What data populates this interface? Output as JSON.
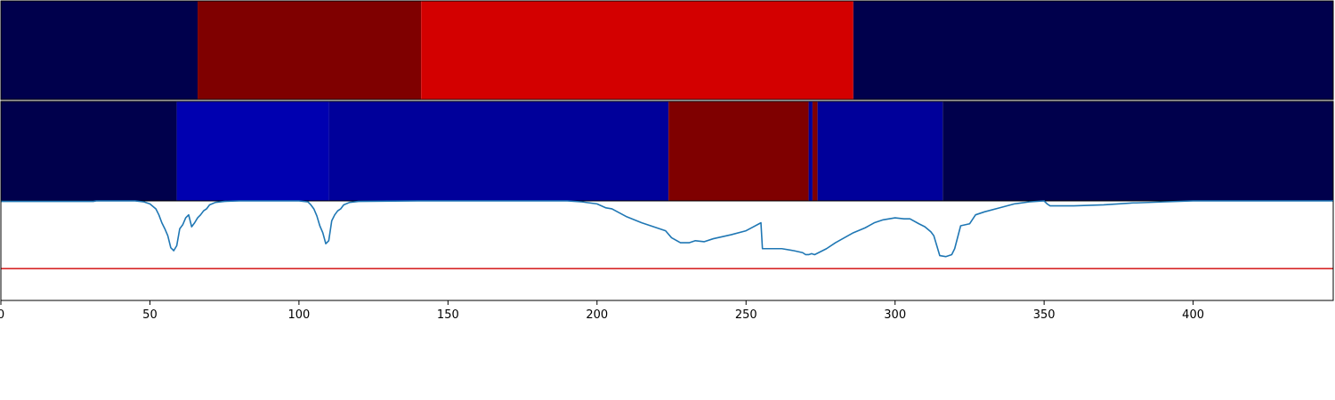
{
  "chart_data": {
    "type": "heatmap",
    "x_ticks": [
      0,
      50,
      100,
      150,
      200,
      250,
      300,
      350,
      400
    ],
    "xlim": [
      0,
      447
    ],
    "panels": [
      {
        "type": "heatmap",
        "segments": [
          {
            "start": 0,
            "end": 66,
            "color": "#00004c"
          },
          {
            "start": 66,
            "end": 141,
            "color": "#7f0000"
          },
          {
            "start": 141,
            "end": 286,
            "color": "#d30000"
          },
          {
            "start": 286,
            "end": 447,
            "color": "#00004c"
          }
        ]
      },
      {
        "type": "heatmap",
        "segments": [
          {
            "start": 0,
            "end": 59,
            "color": "#00004c"
          },
          {
            "start": 59,
            "end": 110,
            "color": "#0000b0"
          },
          {
            "start": 110,
            "end": 224,
            "color": "#00009a"
          },
          {
            "start": 224,
            "end": 271,
            "color": "#7f0000"
          },
          {
            "start": 271,
            "end": 272.3,
            "color": "#00009a"
          },
          {
            "start": 272.3,
            "end": 274,
            "color": "#7f0000"
          },
          {
            "start": 274,
            "end": 316,
            "color": "#00009a"
          },
          {
            "start": 316,
            "end": 447,
            "color": "#00004c"
          }
        ]
      },
      {
        "type": "line",
        "ylim": [
          0,
          1
        ],
        "threshold": 0.32,
        "threshold_color": "#d62728",
        "line_color": "#1f77b4",
        "x": [
          0,
          31,
          32,
          45,
          48,
          50,
          52,
          53,
          54,
          55,
          56,
          57,
          58,
          59,
          60,
          61,
          62,
          63,
          64,
          65,
          66,
          67,
          68,
          69,
          70,
          72,
          75,
          80,
          100,
          103,
          104,
          105,
          106,
          107,
          108,
          109,
          110,
          111,
          112,
          113,
          114,
          115,
          117,
          120,
          140,
          190,
          195,
          200,
          203,
          205,
          210,
          215,
          220,
          223,
          225,
          228,
          231,
          233,
          236,
          239,
          242,
          245,
          250,
          255,
          255.5,
          262,
          266,
          269,
          270,
          271,
          272,
          273,
          275,
          277,
          280,
          283,
          286,
          290,
          293,
          296,
          300,
          303,
          305,
          308,
          310,
          312,
          313,
          314,
          315,
          317,
          319,
          320,
          322,
          325,
          327,
          330,
          335,
          340,
          345,
          350,
          351,
          352,
          360,
          370,
          380,
          381,
          390,
          400,
          420,
          447
        ],
        "y": [
          0.995,
          0.995,
          1.0,
          1.0,
          0.99,
          0.97,
          0.92,
          0.86,
          0.78,
          0.72,
          0.65,
          0.53,
          0.5,
          0.55,
          0.72,
          0.76,
          0.83,
          0.86,
          0.74,
          0.78,
          0.83,
          0.86,
          0.9,
          0.92,
          0.96,
          0.985,
          0.995,
          1.0,
          1.0,
          0.99,
          0.96,
          0.92,
          0.85,
          0.75,
          0.68,
          0.57,
          0.6,
          0.8,
          0.86,
          0.9,
          0.92,
          0.96,
          0.985,
          0.995,
          1.0,
          1.0,
          0.99,
          0.97,
          0.93,
          0.92,
          0.84,
          0.78,
          0.73,
          0.7,
          0.63,
          0.58,
          0.58,
          0.6,
          0.59,
          0.62,
          0.64,
          0.66,
          0.7,
          0.78,
          0.52,
          0.52,
          0.5,
          0.48,
          0.46,
          0.46,
          0.47,
          0.46,
          0.49,
          0.52,
          0.58,
          0.63,
          0.68,
          0.73,
          0.78,
          0.81,
          0.83,
          0.82,
          0.82,
          0.77,
          0.74,
          0.69,
          0.65,
          0.55,
          0.45,
          0.44,
          0.46,
          0.52,
          0.75,
          0.77,
          0.86,
          0.89,
          0.93,
          0.97,
          0.99,
          1.0,
          0.97,
          0.95,
          0.95,
          0.96,
          0.98,
          0.98,
          0.99,
          1.0,
          1.0,
          1.0
        ]
      }
    ]
  }
}
